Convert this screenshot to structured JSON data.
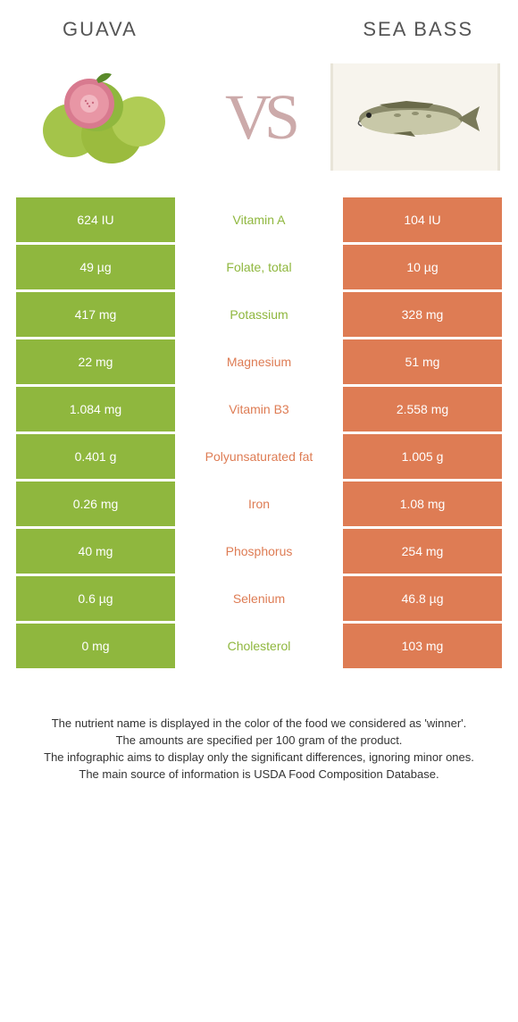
{
  "header": {
    "left_title": "GUAVA",
    "right_title": "SEA BASS",
    "vs_text": "VS"
  },
  "colors": {
    "green": "#8fb73e",
    "orange": "#de7c54",
    "background": "#ffffff",
    "title_color": "#555555",
    "footer_color": "#333333"
  },
  "rows": [
    {
      "left": "624 IU",
      "mid": "Vitamin A",
      "right": "104 IU",
      "winner": "green"
    },
    {
      "left": "49 µg",
      "mid": "Folate, total",
      "right": "10 µg",
      "winner": "green"
    },
    {
      "left": "417 mg",
      "mid": "Potassium",
      "right": "328 mg",
      "winner": "green"
    },
    {
      "left": "22 mg",
      "mid": "Magnesium",
      "right": "51 mg",
      "winner": "orange"
    },
    {
      "left": "1.084 mg",
      "mid": "Vitamin B3",
      "right": "2.558 mg",
      "winner": "orange"
    },
    {
      "left": "0.401 g",
      "mid": "Polyunsaturated fat",
      "right": "1.005 g",
      "winner": "orange"
    },
    {
      "left": "0.26 mg",
      "mid": "Iron",
      "right": "1.08 mg",
      "winner": "orange"
    },
    {
      "left": "40 mg",
      "mid": "Phosphorus",
      "right": "254 mg",
      "winner": "orange"
    },
    {
      "left": "0.6 µg",
      "mid": "Selenium",
      "right": "46.8 µg",
      "winner": "orange"
    },
    {
      "left": "0 mg",
      "mid": "Cholesterol",
      "right": "103 mg",
      "winner": "green"
    }
  ],
  "footer": {
    "line1": "The nutrient name is displayed in the color of the food we considered as 'winner'.",
    "line2": "The amounts are specified per 100 gram of the product.",
    "line3": "The infographic aims to display only the significant differences, ignoring minor ones.",
    "line4": "The main source of information is USDA Food Composition Database."
  }
}
